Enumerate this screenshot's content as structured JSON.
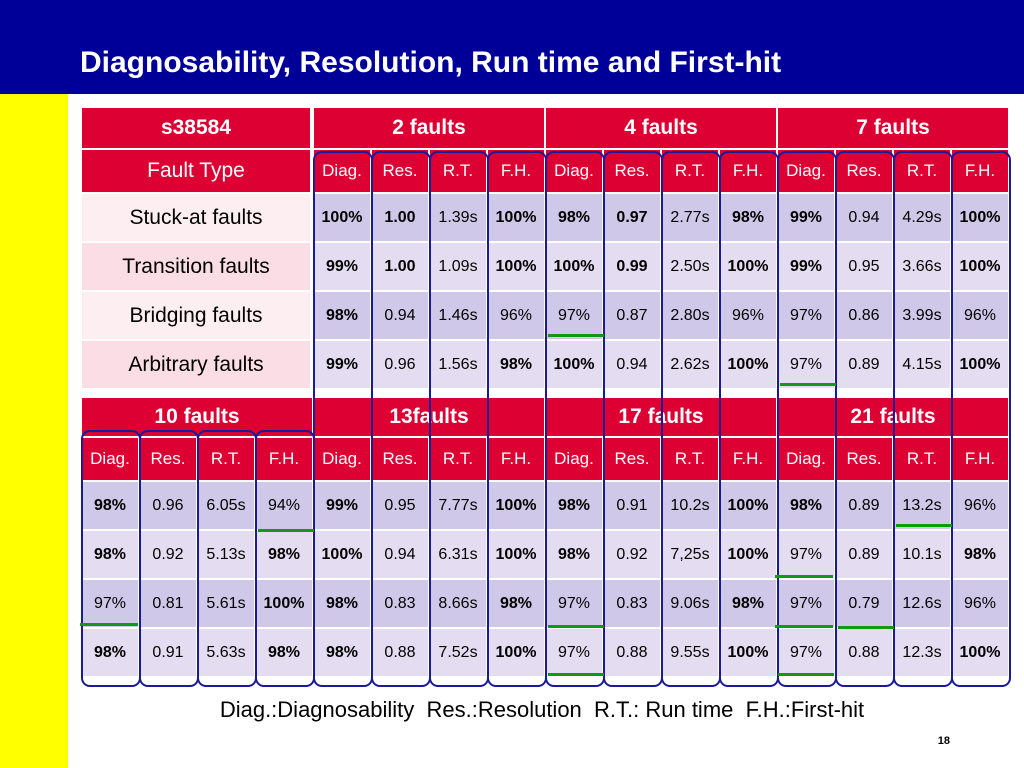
{
  "slide": {
    "title": "Diagnosability, Resolution, Run time and First-hit",
    "legend": "Diag.:Diagnosability  Res.:Resolution  R.T.: Run time  F.H.:First-hit",
    "page_number": "18"
  },
  "colors": {
    "title_bar": "#000099",
    "header_red": "#dd0033",
    "side_strip": "#ffff00",
    "oval_outline": "#1a1a99",
    "underline": "#119911"
  },
  "metric_headers": [
    "Diag.",
    "Res.",
    "R.T.",
    "F.H."
  ],
  "table1": {
    "circuit": "s38584",
    "fault_type_label": "Fault Type",
    "groups": [
      "2 faults",
      "4 faults",
      "7 faults"
    ],
    "row_labels": [
      "Stuck-at faults",
      "Transition faults",
      "Bridging faults",
      "Arbitrary faults"
    ],
    "rows": [
      [
        "100%",
        "1.00",
        "1.39s",
        "100%",
        "98%",
        "0.97",
        "2.77s",
        "98%",
        "99%",
        "0.94",
        "4.29s",
        "100%"
      ],
      [
        "99%",
        "1.00",
        "1.09s",
        "100%",
        "100%",
        "0.99",
        "2.50s",
        "100%",
        "99%",
        "0.95",
        "3.66s",
        "100%"
      ],
      [
        "98%",
        "0.94",
        "1.46s",
        "96%",
        "97%",
        "0.87",
        "2.80s",
        "96%",
        "97%",
        "0.86",
        "3.99s",
        "96%"
      ],
      [
        "99%",
        "0.96",
        "1.56s",
        "98%",
        "100%",
        "0.94",
        "2.62s",
        "100%",
        "97%",
        "0.89",
        "4.15s",
        "100%"
      ]
    ],
    "bold": [
      [
        1,
        1,
        0,
        1,
        1,
        1,
        0,
        1,
        1,
        0,
        0,
        1
      ],
      [
        1,
        1,
        0,
        1,
        1,
        1,
        0,
        1,
        1,
        0,
        0,
        1
      ],
      [
        1,
        0,
        0,
        0,
        0,
        0,
        0,
        0,
        0,
        0,
        0,
        0
      ],
      [
        1,
        0,
        0,
        1,
        1,
        0,
        0,
        1,
        0,
        0,
        0,
        1
      ]
    ]
  },
  "table2": {
    "groups": [
      "10 faults",
      "13faults",
      "17 faults",
      "21 faults"
    ],
    "rows": [
      [
        "98%",
        "0.96",
        "6.05s",
        "94%",
        "99%",
        "0.95",
        "7.77s",
        "100%",
        "98%",
        "0.91",
        "10.2s",
        "100%",
        "98%",
        "0.89",
        "13.2s",
        "96%"
      ],
      [
        "98%",
        "0.92",
        "5.13s",
        "98%",
        "100%",
        "0.94",
        "6.31s",
        "100%",
        "98%",
        "0.92",
        "7,25s",
        "100%",
        "97%",
        "0.89",
        "10.1s",
        "98%"
      ],
      [
        "97%",
        "0.81",
        "5.61s",
        "100%",
        "98%",
        "0.83",
        "8.66s",
        "98%",
        "97%",
        "0.83",
        "9.06s",
        "98%",
        "97%",
        "0.79",
        "12.6s",
        "96%"
      ],
      [
        "98%",
        "0.91",
        "5.63s",
        "98%",
        "98%",
        "0.88",
        "7.52s",
        "100%",
        "97%",
        "0.88",
        "9.55s",
        "100%",
        "97%",
        "0.88",
        "12.3s",
        "100%"
      ]
    ],
    "bold": [
      [
        1,
        0,
        0,
        0,
        1,
        0,
        0,
        1,
        1,
        0,
        0,
        1,
        1,
        0,
        0,
        0
      ],
      [
        1,
        0,
        0,
        1,
        1,
        0,
        0,
        1,
        1,
        0,
        0,
        1,
        0,
        0,
        0,
        1
      ],
      [
        0,
        0,
        0,
        1,
        1,
        0,
        0,
        1,
        0,
        0,
        0,
        1,
        0,
        0,
        0,
        0
      ],
      [
        1,
        0,
        0,
        1,
        1,
        0,
        0,
        1,
        0,
        0,
        0,
        1,
        0,
        0,
        0,
        1
      ]
    ]
  }
}
